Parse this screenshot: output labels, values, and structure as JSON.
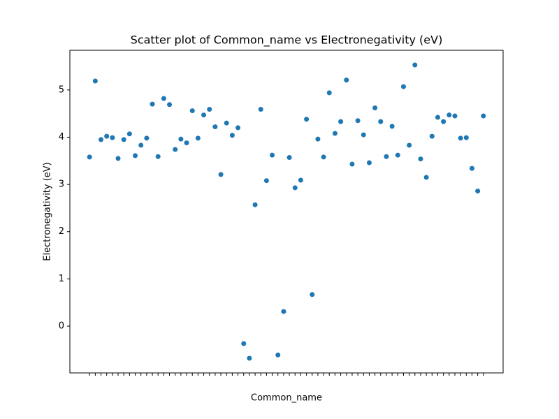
{
  "chart_data": {
    "type": "scatter",
    "title": "Scatter plot of Common_name vs Electronegativity (eV)",
    "x_label": "Common_name",
    "y_label": "Electronegativity (eV)",
    "color": "#1f77b4",
    "categories": [
      null,
      null,
      null,
      null,
      null,
      null,
      null,
      null,
      null,
      null,
      null,
      null,
      null,
      null,
      null,
      null,
      null,
      null,
      null,
      null,
      null,
      null,
      null,
      null,
      null,
      null,
      null,
      null,
      null,
      null,
      null,
      null,
      null,
      null,
      null,
      null,
      null,
      null,
      null,
      null,
      null,
      null,
      null,
      null,
      null,
      null,
      null,
      null,
      null,
      null,
      null,
      null,
      null,
      null,
      null,
      null,
      null,
      null,
      null,
      null,
      null,
      null,
      null,
      null,
      null,
      null,
      null,
      null,
      null,
      null
    ],
    "values": [
      3.58,
      5.19,
      3.95,
      4.02,
      3.99,
      3.55,
      3.95,
      4.07,
      3.61,
      3.83,
      3.98,
      4.7,
      3.59,
      4.82,
      4.69,
      3.74,
      3.96,
      3.88,
      4.56,
      3.98,
      4.47,
      4.59,
      4.22,
      3.21,
      4.3,
      4.04,
      4.2,
      -0.37,
      -0.68,
      2.57,
      4.59,
      3.08,
      3.62,
      -0.61,
      0.31,
      3.57,
      2.93,
      3.09,
      4.38,
      0.67,
      3.96,
      3.58,
      4.94,
      4.08,
      4.33,
      5.21,
      3.43,
      4.35,
      4.05,
      3.46,
      4.62,
      4.33,
      3.59,
      4.23,
      3.62,
      5.07,
      3.83,
      5.53,
      3.54,
      3.15,
      4.02,
      4.42,
      4.33,
      4.47,
      4.45,
      3.98,
      3.99,
      3.34,
      2.86,
      4.45
    ],
    "ylim": [
      -0.99,
      5.84
    ],
    "yticks": [
      0,
      1,
      2,
      3,
      4,
      5
    ]
  }
}
